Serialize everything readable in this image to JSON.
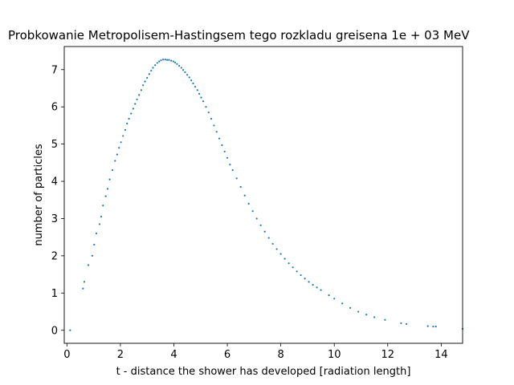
{
  "chart_data": {
    "type": "scatter",
    "title": "Probkowanie Metropolisem-Hastingsem tego rozkladu greisena 1e + 03 MeV",
    "xlabel": "t - distance the shower has developed [radiation length]",
    "ylabel": "number of particles",
    "xlim": [
      -0.1,
      14.8
    ],
    "ylim": [
      -0.35,
      7.62
    ],
    "xticks": [
      {
        "value": 0,
        "label": "0"
      },
      {
        "value": 2,
        "label": "2"
      },
      {
        "value": 4,
        "label": "4"
      },
      {
        "value": 6,
        "label": "6"
      },
      {
        "value": 8,
        "label": "8"
      },
      {
        "value": 10,
        "label": "10"
      },
      {
        "value": 12,
        "label": "12"
      },
      {
        "value": 14,
        "label": "14"
      }
    ],
    "yticks": [
      {
        "value": 0,
        "label": "0"
      },
      {
        "value": 1,
        "label": "1"
      },
      {
        "value": 2,
        "label": "2"
      },
      {
        "value": 3,
        "label": "3"
      },
      {
        "value": 4,
        "label": "4"
      },
      {
        "value": 5,
        "label": "5"
      },
      {
        "value": 6,
        "label": "6"
      },
      {
        "value": 7,
        "label": "7"
      }
    ],
    "grid": false,
    "marker_color": "#1f77b4",
    "series": [
      {
        "x": [
          0.12,
          0.6,
          0.65,
          0.8,
          0.95,
          1.02,
          1.1,
          1.22,
          1.28,
          1.35,
          1.45,
          1.52,
          1.6,
          1.7,
          1.8,
          1.88,
          1.95,
          2.02,
          2.1,
          2.18,
          2.25,
          2.32,
          2.4,
          2.48,
          2.55,
          2.62,
          2.7,
          2.78,
          2.85,
          2.92,
          3.0,
          3.08,
          3.15,
          3.22,
          3.3,
          3.38,
          3.45,
          3.52,
          3.6,
          3.68,
          3.75,
          3.82,
          3.9,
          3.98,
          4.05,
          4.12,
          4.2,
          4.28,
          4.35,
          4.42,
          4.5,
          4.58,
          4.65,
          4.72,
          4.8,
          4.88,
          4.95,
          5.02,
          5.1,
          5.2,
          5.3,
          5.4,
          5.5,
          5.6,
          5.7,
          5.8,
          5.9,
          6.0,
          6.1,
          6.2,
          6.35,
          6.5,
          6.65,
          6.8,
          6.95,
          7.1,
          7.25,
          7.4,
          7.55,
          7.7,
          7.85,
          8.0,
          8.15,
          8.3,
          8.45,
          8.6,
          8.75,
          8.9,
          9.05,
          9.2,
          9.35,
          9.5,
          9.8,
          10.0,
          10.3,
          10.6,
          10.9,
          11.2,
          11.5,
          11.9,
          12.5,
          12.7,
          13.5,
          13.7,
          13.8,
          14.8
        ],
        "y": [
          0.0,
          1.12,
          1.3,
          1.75,
          2.0,
          2.3,
          2.6,
          2.85,
          3.05,
          3.35,
          3.6,
          3.8,
          4.05,
          4.3,
          4.55,
          4.72,
          4.9,
          5.05,
          5.22,
          5.38,
          5.55,
          5.68,
          5.82,
          5.95,
          6.08,
          6.2,
          6.32,
          6.45,
          6.58,
          6.68,
          6.78,
          6.88,
          6.97,
          7.05,
          7.12,
          7.18,
          7.22,
          7.25,
          7.27,
          7.27,
          7.26,
          7.26,
          7.24,
          7.22,
          7.19,
          7.15,
          7.1,
          7.05,
          6.99,
          6.93,
          6.86,
          6.79,
          6.71,
          6.63,
          6.54,
          6.45,
          6.35,
          6.25,
          6.15,
          6.0,
          5.85,
          5.68,
          5.5,
          5.33,
          5.15,
          4.97,
          4.8,
          4.63,
          4.45,
          4.3,
          4.08,
          3.85,
          3.62,
          3.4,
          3.2,
          3.0,
          2.82,
          2.65,
          2.48,
          2.32,
          2.18,
          2.05,
          1.92,
          1.8,
          1.69,
          1.58,
          1.48,
          1.39,
          1.3,
          1.22,
          1.15,
          1.08,
          0.94,
          0.85,
          0.72,
          0.6,
          0.5,
          0.42,
          0.35,
          0.28,
          0.19,
          0.17,
          0.11,
          0.1,
          0.1,
          0.04
        ]
      }
    ]
  }
}
